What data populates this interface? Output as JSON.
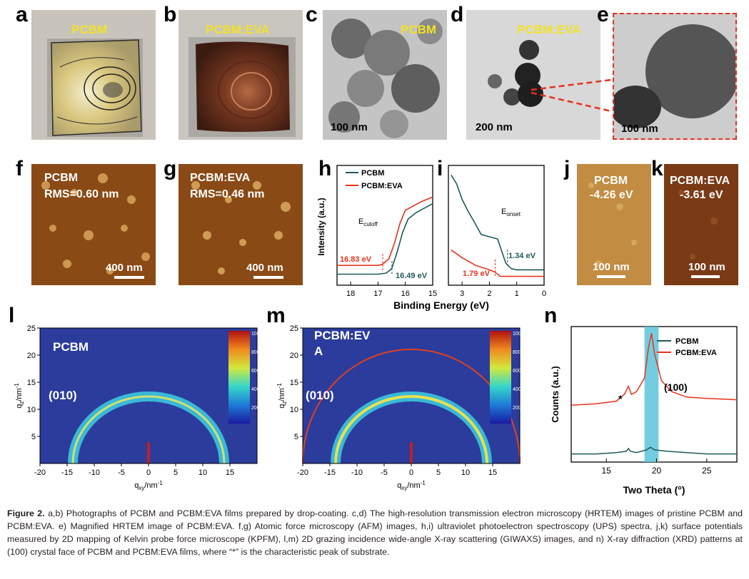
{
  "panels": {
    "a": {
      "label": "a",
      "title": "PCBM"
    },
    "b": {
      "label": "b",
      "title": "PCBM:EVA"
    },
    "c": {
      "label": "c",
      "title": "PCBM",
      "scale": "100 nm"
    },
    "d": {
      "label": "d",
      "title": "PCBM:EVA",
      "scale": "200 nm"
    },
    "e": {
      "label": "e",
      "scale": "100 nm"
    },
    "f": {
      "label": "f",
      "title": "PCBM",
      "rms": "RMS=0.60 nm",
      "scale": "400 nm"
    },
    "g": {
      "label": "g",
      "title": "PCBM:EVA",
      "rms": "RMS=0.46 nm",
      "scale": "400 nm"
    },
    "h": {
      "label": "h"
    },
    "i": {
      "label": "i"
    },
    "j": {
      "label": "j",
      "title": "PCBM",
      "value": "-4.26 eV",
      "scale": "100 nm"
    },
    "k": {
      "label": "k",
      "title": "PCBM:EVA",
      "value": "-3.61 eV",
      "scale": "100 nm"
    },
    "l": {
      "label": "l",
      "title": "PCBM",
      "peak": "(010)"
    },
    "m": {
      "label": "m",
      "title_line1": "PCBM:EV",
      "title_line2": "A",
      "peak": "(010)"
    },
    "n": {
      "label": "n"
    }
  },
  "colors": {
    "pcbm": "#1f5a5a",
    "pcbm_eva": "#e8321e",
    "highlight": "#5bc4d8",
    "yellow": "#f2e224"
  },
  "chart_data": [
    {
      "type": "line",
      "panel": "h",
      "title": "",
      "xlabel": "Binding Energy (eV)",
      "ylabel": "Intensity (a.u.)",
      "xlim": [
        18.5,
        15
      ],
      "xticks": [
        18,
        17,
        16,
        15
      ],
      "series": [
        {
          "name": "PCBM",
          "x": [
            18.5,
            17.0,
            16.7,
            16.5,
            16.3,
            16.1,
            15.9,
            15.6,
            15.3,
            15.0
          ],
          "y": [
            0.1,
            0.1,
            0.11,
            0.15,
            0.3,
            0.48,
            0.6,
            0.66,
            0.7,
            0.74
          ]
        },
        {
          "name": "PCBM:EVA",
          "x": [
            18.5,
            17.0,
            16.83,
            16.6,
            16.4,
            16.2,
            16.0,
            15.7,
            15.4,
            15.0
          ],
          "y": [
            0.18,
            0.18,
            0.19,
            0.24,
            0.38,
            0.56,
            0.68,
            0.72,
            0.76,
            0.8
          ]
        }
      ],
      "annotations": [
        "E",
        "cutoff",
        "16.83 eV",
        "16.49 eV"
      ]
    },
    {
      "type": "line",
      "panel": "i",
      "xlim": [
        3.5,
        0
      ],
      "xticks": [
        3,
        2,
        1,
        0
      ],
      "series": [
        {
          "name": "PCBM",
          "x": [
            3.4,
            3.2,
            3.0,
            2.8,
            2.5,
            2.3,
            2.0,
            1.7,
            1.4,
            1.2,
            1.0,
            0.5,
            0
          ],
          "y": [
            1.0,
            0.92,
            0.78,
            0.68,
            0.55,
            0.46,
            0.44,
            0.42,
            0.2,
            0.15,
            0.14,
            0.14,
            0.14
          ]
        },
        {
          "name": "PCBM:EVA",
          "x": [
            3.4,
            3.0,
            2.5,
            2.0,
            1.8,
            1.6,
            1.2,
            0.8,
            0.5,
            0
          ],
          "y": [
            0.32,
            0.25,
            0.18,
            0.14,
            0.12,
            0.08,
            0.08,
            0.08,
            0.08,
            0.08
          ]
        }
      ],
      "annotations": [
        "E",
        "onset",
        "1.34 eV",
        "1.79 eV"
      ]
    },
    {
      "type": "heatmap",
      "panel": "l",
      "xlabel": "qxy/nm-1",
      "ylabel": "qz/nm-1",
      "xticks": [
        -20,
        -15,
        -10,
        -5,
        0,
        5,
        10,
        15
      ],
      "yticks": [
        5,
        10,
        15,
        20,
        25
      ],
      "colorbar_ticks": [
        1000,
        800,
        600,
        400,
        200
      ]
    },
    {
      "type": "heatmap",
      "panel": "m",
      "xlabel": "qxy/nm-1",
      "ylabel": "qz/nm-1",
      "xticks": [
        -20,
        -15,
        -10,
        -5,
        0,
        5,
        10,
        15
      ],
      "yticks": [
        5,
        10,
        15,
        20,
        25
      ],
      "colorbar_ticks": [
        1000,
        800,
        600,
        400,
        200
      ]
    },
    {
      "type": "line",
      "panel": "n",
      "xlabel": "Two Theta (°)",
      "ylabel": "Counts (a.u.)",
      "xlim": [
        11.5,
        28
      ],
      "xticks": [
        15,
        20,
        25
      ],
      "highlight": [
        18.8,
        20.2
      ],
      "series": [
        {
          "name": "PCBM",
          "x": [
            11.5,
            14,
            16,
            17,
            17.2,
            17.4,
            18,
            19,
            19.4,
            19.8,
            21,
            23,
            25,
            28
          ],
          "y": [
            0.06,
            0.06,
            0.07,
            0.08,
            0.1,
            0.08,
            0.07,
            0.09,
            0.11,
            0.09,
            0.08,
            0.07,
            0.06,
            0.06
          ]
        },
        {
          "name": "PCBM:EVA",
          "x": [
            11.5,
            14,
            16,
            16.8,
            17.2,
            17.5,
            18,
            18.8,
            19.2,
            19.5,
            19.8,
            20.5,
            21.5,
            23,
            25,
            28
          ],
          "y": [
            0.42,
            0.43,
            0.45,
            0.5,
            0.56,
            0.5,
            0.52,
            0.62,
            0.85,
            0.95,
            0.8,
            0.6,
            0.52,
            0.48,
            0.47,
            0.46
          ]
        }
      ],
      "annotations": [
        "*",
        "(100)"
      ]
    }
  ],
  "caption": {
    "figure_label": "Figure 2.",
    "text": " a,b) Photographs of PCBM and PCBM:EVA films prepared by drop-coating. c,d) The high-resolution transmission electron microscopy (HRTEM) images of pristine PCBM and PCBM:EVA. e) Magnified HRTEM image of PCBM:EVA. f,g) Atomic force microscopy (AFM) images, h,i) ultraviolet photoelectron spectroscopy (UPS) spectra, j,k) surface potentials measured by 2D mapping of Kelvin probe force microscope (KPFM), l,m) 2D grazing incidence wide-angle X-ray scattering (GIWAXS) images, and n) X-ray diffraction (XRD) patterns at (100) crystal face of PCBM and PCBM:EVA films, where “*” is the characteristic peak of substrate."
  }
}
